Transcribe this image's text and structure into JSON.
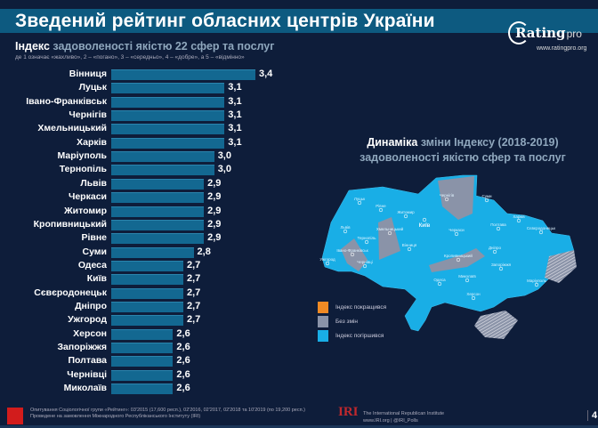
{
  "title": "Зведений рейтинг обласних центрів України",
  "logo": {
    "brand": "Rating",
    "brand_suffix": "pro",
    "url": "www.ratingpro.org"
  },
  "subtitle": {
    "bold": "Індекс",
    "rest": " задоволеності якістю 22 сфер та послуг"
  },
  "note": "де 1 означає «жахливо», 2 – «погано», 3 – «середньо», 4 – «добре», а 5 – «відмінно»",
  "chart_data": {
    "type": "bar",
    "orientation": "horizontal",
    "title": "Індекс задоволеності якістю 22 сфер та послуг",
    "categories": [
      "Вінниця",
      "Луцьк",
      "Івано-Франківськ",
      "Чернігів",
      "Хмельницький",
      "Харків",
      "Маріуполь",
      "Тернопіль",
      "Львів",
      "Черкаси",
      "Житомир",
      "Кропивницький",
      "Рівне",
      "Суми",
      "Одеса",
      "Київ",
      "Сєвєродонецьк",
      "Дніпро",
      "Ужгород",
      "Херсон",
      "Запоріжжя",
      "Полтава",
      "Чернівці",
      "Миколаїв"
    ],
    "values": [
      3.4,
      3.1,
      3.1,
      3.1,
      3.1,
      3.1,
      3.0,
      3.0,
      2.9,
      2.9,
      2.9,
      2.9,
      2.9,
      2.8,
      2.7,
      2.7,
      2.7,
      2.7,
      2.7,
      2.6,
      2.6,
      2.6,
      2.6,
      2.6
    ],
    "value_labels": [
      "3,4",
      "3,1",
      "3,1",
      "3,1",
      "3,1",
      "3,1",
      "3,0",
      "3,0",
      "2,9",
      "2,9",
      "2,9",
      "2,9",
      "2,9",
      "2,8",
      "2,7",
      "2,7",
      "2,7",
      "2,7",
      "2,7",
      "2,6",
      "2,6",
      "2,6",
      "2,6",
      "2,6"
    ],
    "xlim": [
      2.0,
      3.4
    ],
    "color": "#136891"
  },
  "map": {
    "title_bold": "Динаміка",
    "title_rest": " зміни Індексу (2018-2019)",
    "title_line2": "задоволеності якістю сфер та послуг",
    "cities": [
      "Луцьк",
      "Рівне",
      "Житомир",
      "Київ",
      "Чернігів",
      "Суми",
      "Харків",
      "Полтава",
      "Черкаси",
      "Вінниця",
      "Хмельницький",
      "Тернопіль",
      "Львів",
      "Івано-Франківськ",
      "Ужгород",
      "Чернівці",
      "Кропивницький",
      "Дніпро",
      "Запоріжжя",
      "Сєвєродонецьк",
      "Маріуполь",
      "Миколаїв",
      "Одеса",
      "Херсон"
    ],
    "legend": [
      {
        "label": "Індекс покращився",
        "color": "#f08a24"
      },
      {
        "label": "Без змін",
        "color": "#8a93a8"
      },
      {
        "label": "Індекс погіршився",
        "color": "#19aee6"
      }
    ]
  },
  "footer": {
    "source_line1": "Опитування Соціологічної групи «Рейтинг»: 03'2015 (17,600 респ.), 02'2016, 02'2017, 02'2018 та 10'2019 (по 19,200 респ.)",
    "source_line2": "Проведене на замовлення Міжнародного Республіканського Інституту (IRI)",
    "iri_logo": "IRI",
    "iri_name": "The International Republican Institute",
    "iri_links": "www.IRI.org | @IRI_Polls",
    "page": "4"
  }
}
